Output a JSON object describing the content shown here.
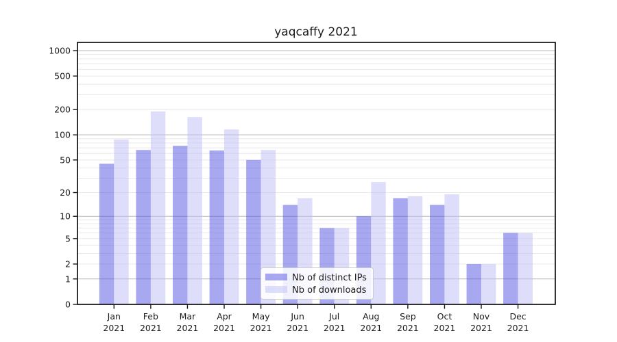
{
  "chart_data": {
    "type": "bar",
    "title": "yaqcaffy 2021",
    "categories": [
      "Jan",
      "Feb",
      "Mar",
      "Apr",
      "May",
      "Jun",
      "Jul",
      "Aug",
      "Sep",
      "Oct",
      "Nov",
      "Dec"
    ],
    "year_label": "2021",
    "series": [
      {
        "name": "Nb of distinct IPs",
        "color": "#5151e3",
        "fill_alpha": 0.5,
        "values": [
          45,
          66,
          74,
          65,
          50,
          14,
          7,
          10,
          17,
          14,
          2,
          6
        ]
      },
      {
        "name": "Nb of downloads",
        "color": "#bdbdf7",
        "fill_alpha": 0.5,
        "values": [
          88,
          190,
          163,
          116,
          66,
          17,
          7,
          27,
          18,
          19,
          2,
          6
        ]
      }
    ],
    "yscale": "log1p",
    "yticks": [
      0,
      1,
      2,
      5,
      10,
      20,
      50,
      100,
      200,
      500,
      1000
    ],
    "ylim": [
      0,
      1250
    ],
    "grid": "on",
    "grid_major_values": [
      1,
      10,
      100,
      1000
    ],
    "grid_minor_values": [
      2,
      3,
      4,
      5,
      6,
      7,
      8,
      9,
      20,
      30,
      40,
      50,
      60,
      70,
      80,
      90,
      200,
      300,
      400,
      500,
      600,
      700,
      800,
      900
    ],
    "legend_position": "lower center-right",
    "colors": {
      "grid_major": "#b8b8b8",
      "grid_minor": "#e8e8e8",
      "spine": "#000000",
      "legend_border": "#cccccc",
      "legend_bg": "#ffffff"
    }
  }
}
